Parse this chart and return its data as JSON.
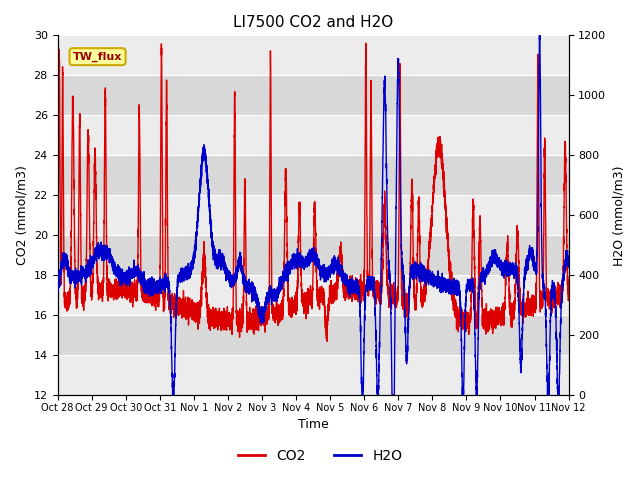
{
  "title": "LI7500 CO2 and H2O",
  "xlabel": "Time",
  "ylabel_left": "CO2 (mmol/m3)",
  "ylabel_right": "H2O (mmol/m3)",
  "ylim_left": [
    12,
    30
  ],
  "ylim_right": [
    0,
    1200
  ],
  "yticks_left": [
    12,
    14,
    16,
    18,
    20,
    22,
    24,
    26,
    28,
    30
  ],
  "yticks_right": [
    0,
    200,
    400,
    600,
    800,
    1000,
    1200
  ],
  "x_tick_labels": [
    "Oct 28",
    "Oct 29",
    "Oct 30",
    "Oct 31",
    "Nov 1",
    "Nov 2",
    "Nov 3",
    "Nov 4",
    "Nov 5",
    "Nov 6",
    "Nov 7",
    "Nov 8",
    "Nov 9",
    "Nov 10",
    "Nov 11",
    "Nov 12"
  ],
  "co2_color": "#dd0000",
  "h2o_color": "#0000cc",
  "bg_color": "#ffffff",
  "plot_bg_color": "#e0e0e0",
  "band_light": "#ececec",
  "band_dark": "#d8d8d8",
  "grid_color": "#ffffff",
  "annotation_text": "TW_flux",
  "annotation_bg": "#ffff99",
  "annotation_border": "#ccaa00",
  "legend_co2": "CO2",
  "legend_h2o": "H2O",
  "line_width": 1.0
}
